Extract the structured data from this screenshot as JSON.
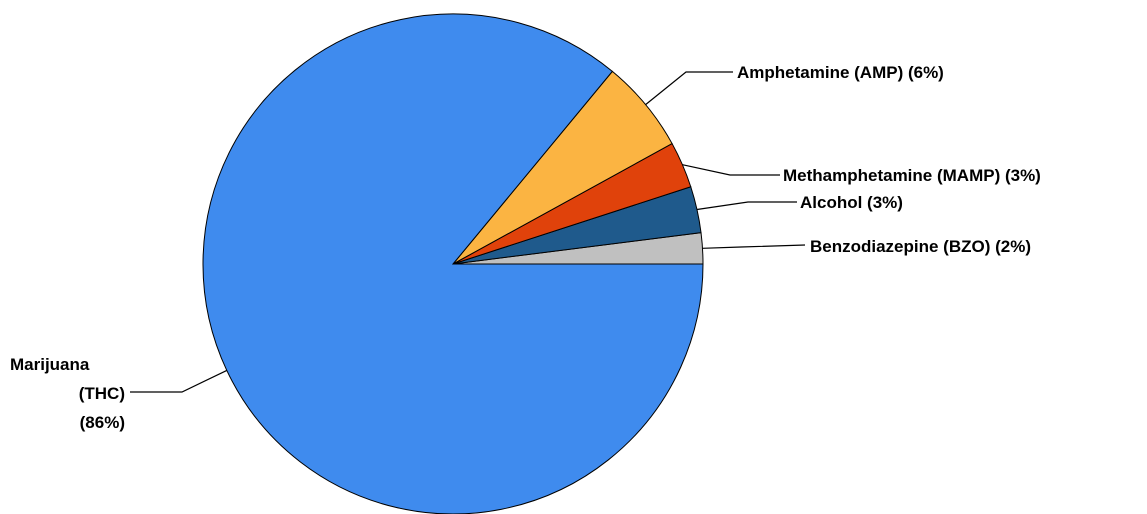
{
  "chart_data": {
    "type": "pie",
    "title": "",
    "legend": "none",
    "slices": [
      {
        "label": "Benzodiazepine (BZO) (2%)",
        "category": "Benzodiazepine (BZO)",
        "value": 2,
        "color": "#c0c0c0"
      },
      {
        "label": "Alcohol (3%)",
        "category": "Alcohol",
        "value": 3,
        "color": "#1f5a8c"
      },
      {
        "label": "Methamphetamine (MAMP) (3%)",
        "category": "Methamphetamine (MAMP)",
        "value": 3,
        "color": "#e0420b"
      },
      {
        "label": "Amphetamine (AMP) (6%)",
        "category": "Amphetamine (AMP)",
        "value": 6,
        "color": "#fbb442"
      },
      {
        "label_lines": [
          "Marijuana",
          "(THC)",
          "(86%)"
        ],
        "category": "Marijuana (THC)",
        "value": 86,
        "color": "#3f8bee"
      }
    ]
  }
}
